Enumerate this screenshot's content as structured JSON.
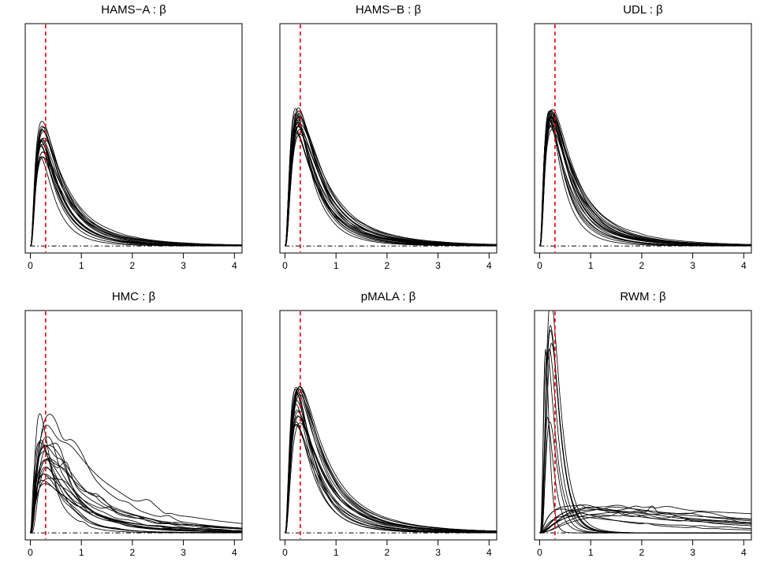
{
  "chart_data": [
    {
      "type": "line",
      "title": "HAMS−A : β",
      "xlim": [
        -0.1,
        4.15
      ],
      "ylim": [
        -0.15,
        4.8
      ],
      "xticks": [
        0,
        1,
        2,
        3,
        4
      ],
      "reference_vline_x": 0.3,
      "reference_hline_y": 0,
      "n_chains": 20,
      "mode_x": [
        0.19,
        0.27
      ],
      "peak_height": [
        1.9,
        2.7
      ],
      "tail_extent_x": 3.0
    },
    {
      "type": "line",
      "title": "HAMS−B : β",
      "xlim": [
        -0.1,
        4.15
      ],
      "ylim": [
        -0.15,
        4.8
      ],
      "xticks": [
        0,
        1,
        2,
        3,
        4
      ],
      "reference_vline_x": 0.3,
      "reference_hline_y": 0,
      "n_chains": 20,
      "mode_x": [
        0.2,
        0.3
      ],
      "peak_height": [
        2.3,
        3.0
      ],
      "tail_extent_x": 3.2
    },
    {
      "type": "line",
      "title": "UDL : β",
      "xlim": [
        -0.1,
        4.15
      ],
      "ylim": [
        -0.15,
        4.8
      ],
      "xticks": [
        0,
        1,
        2,
        3,
        4
      ],
      "reference_vline_x": 0.3,
      "reference_hline_y": 0,
      "n_chains": 20,
      "mode_x": [
        0.18,
        0.26
      ],
      "peak_height": [
        2.5,
        3.0
      ],
      "tail_extent_x": 3.0
    },
    {
      "type": "line",
      "title": "HMC : β",
      "xlim": [
        -0.1,
        4.15
      ],
      "ylim": [
        -0.15,
        4.8
      ],
      "xticks": [
        0,
        1,
        2,
        3,
        4
      ],
      "reference_vline_x": 0.3,
      "reference_hline_y": 0,
      "n_chains": 20,
      "mode_x": [
        0.18,
        0.45
      ],
      "peak_height": [
        1.0,
        2.7
      ],
      "tail_extent_x": 4.0
    },
    {
      "type": "line",
      "title": "pMALA : β",
      "xlim": [
        -0.1,
        4.15
      ],
      "ylim": [
        -0.15,
        4.8
      ],
      "xticks": [
        0,
        1,
        2,
        3,
        4
      ],
      "reference_vline_x": 0.3,
      "reference_hline_y": 0,
      "n_chains": 20,
      "mode_x": [
        0.2,
        0.3
      ],
      "peak_height": [
        2.3,
        3.2
      ],
      "tail_extent_x": 3.0
    },
    {
      "type": "line",
      "title": "RWM : β",
      "xlim": [
        -0.1,
        4.15
      ],
      "ylim": [
        -0.15,
        4.8
      ],
      "xticks": [
        0,
        1,
        2,
        3,
        4
      ],
      "reference_vline_x": 0.3,
      "reference_hline_y": 0,
      "n_chains": 20,
      "mode_x": [
        0.15,
        2.0
      ],
      "peak_height": [
        0.3,
        5.2
      ],
      "tail_extent_x": 4.15
    }
  ],
  "colors": {
    "curve": "#000000",
    "reference_vline": "#e8000b",
    "frame": "#000000"
  }
}
